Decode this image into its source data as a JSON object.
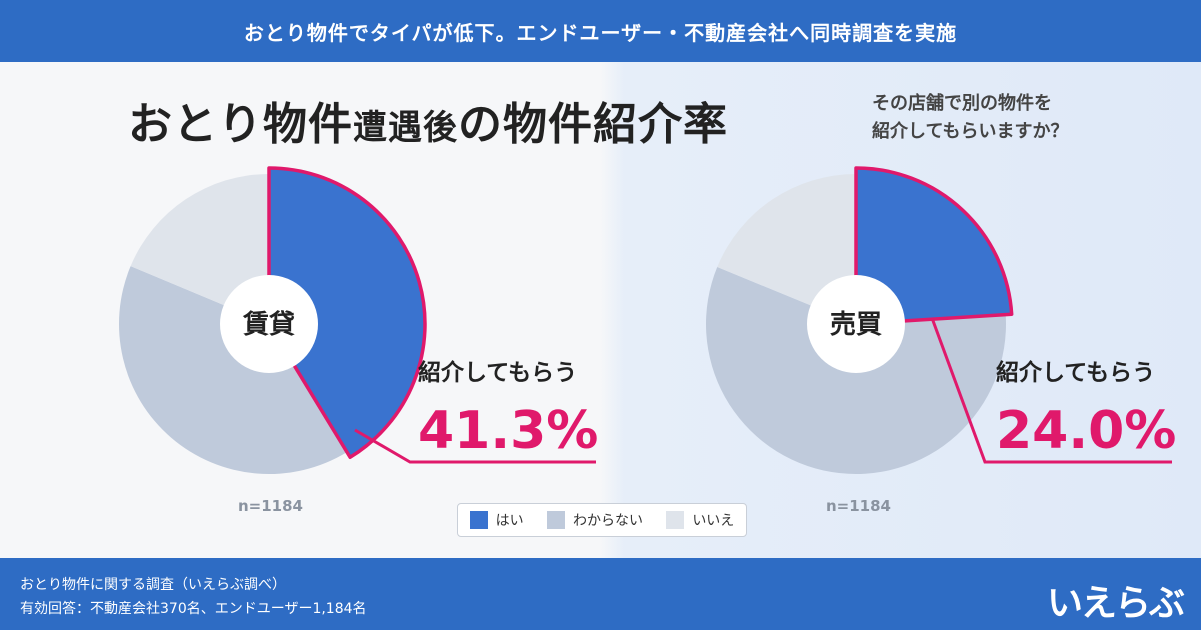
{
  "header": {
    "banner": "おとり物件でタイパが低下。エンドユーザー・不動産会社へ同時調査を実施"
  },
  "title": {
    "part1": "おとり物件",
    "part2": "遭遇後",
    "part3": "の物件紹介率"
  },
  "subtitle": {
    "line1": "その店舗で別の物件を",
    "line2": "紹介してもらいますか？"
  },
  "legend": {
    "yes": "はい",
    "unknown": "わからない",
    "no": "いいえ"
  },
  "footer": {
    "note1": "おとり物件に関する調査（いえらぶ調べ）",
    "note2": "有効回答：不動産会社370名、エンドユーザー1,184名",
    "logo": "いえらぶ"
  },
  "colors": {
    "yes": "#3a73cf",
    "unknown": "#bfcadb",
    "no": "#dfe4eb",
    "highlight": "#e0196b"
  },
  "chart_data": [
    {
      "type": "pie",
      "center_label": "賃貸",
      "n_label": "n=1184",
      "callout_label": "紹介してもらう",
      "callout_value": "41.3%",
      "categories": [
        "はい",
        "わからない",
        "いいえ"
      ],
      "values": [
        41.3,
        40.0,
        18.7
      ]
    },
    {
      "type": "pie",
      "center_label": "売買",
      "n_label": "n=1184",
      "callout_label": "紹介してもらう",
      "callout_value": "24.0%",
      "categories": [
        "はい",
        "わからない",
        "いいえ"
      ],
      "values": [
        24.0,
        57.2,
        18.8
      ]
    }
  ]
}
